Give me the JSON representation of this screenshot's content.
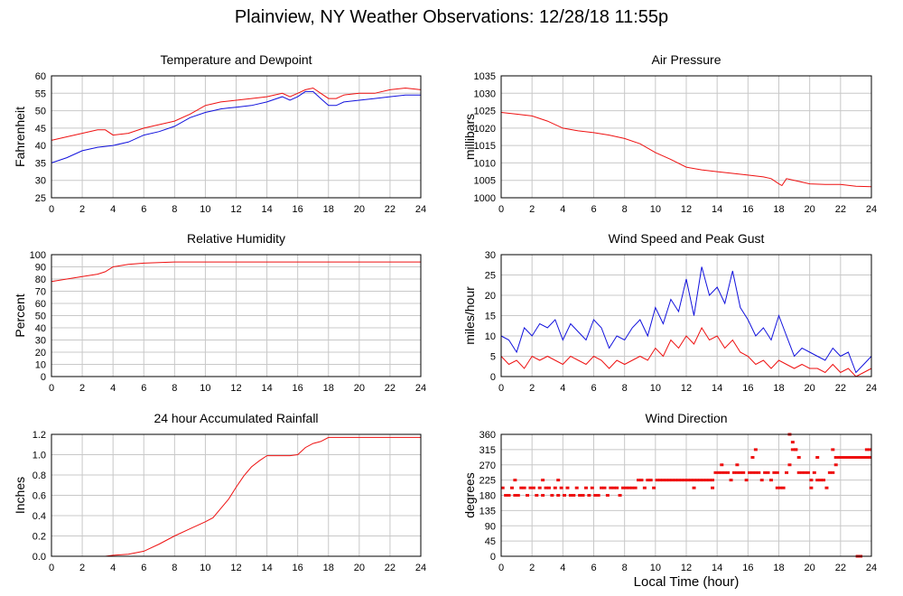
{
  "page": {
    "title": "Plainview, NY Weather Observations: 12/28/18 11:55p",
    "xlabel": "Local Time (hour)"
  },
  "colors": {
    "red": "#ee1111",
    "blue": "#1111dd",
    "grid": "#c8c8c8"
  },
  "chart_data": [
    {
      "type": "line",
      "title": "Temperature and Dewpoint",
      "ylabel": "Fahrenheit",
      "xlim": [
        0,
        24
      ],
      "ylim": [
        25,
        60
      ],
      "xticks": [
        0,
        2,
        4,
        6,
        8,
        10,
        12,
        14,
        16,
        18,
        20,
        22,
        24
      ],
      "yticks": [
        25,
        30,
        35,
        40,
        45,
        50,
        55,
        60
      ],
      "grid": true,
      "series": [
        {
          "color": "red",
          "style": "line",
          "x": [
            0,
            1,
            2,
            3,
            3.5,
            4,
            5,
            6,
            7,
            8,
            9,
            10,
            10.5,
            11,
            12,
            13,
            14,
            15,
            15.5,
            16,
            16.5,
            17,
            17.5,
            18,
            18.5,
            19,
            20,
            21,
            22,
            23,
            24
          ],
          "y": [
            41.5,
            42.5,
            43.5,
            44.5,
            44.5,
            43,
            43.5,
            45,
            46,
            47,
            49,
            51.5,
            52,
            52.5,
            53,
            53.5,
            54,
            55,
            54,
            55,
            56,
            56.5,
            55,
            53.5,
            53.5,
            54.5,
            55,
            55,
            56,
            56.5,
            56
          ]
        },
        {
          "color": "blue",
          "style": "line",
          "x": [
            0,
            1,
            2,
            3,
            4,
            5,
            6,
            7,
            8,
            9,
            10,
            10.5,
            11,
            12,
            13,
            14,
            15,
            15.5,
            16,
            16.5,
            17,
            17.5,
            18,
            18.5,
            19,
            20,
            21,
            22,
            23,
            24
          ],
          "y": [
            35,
            36.5,
            38.5,
            39.5,
            40,
            41,
            43,
            44,
            45.5,
            48,
            49.5,
            50,
            50.5,
            51,
            51.5,
            52.5,
            54,
            53,
            54,
            55.5,
            55.5,
            53.5,
            51.5,
            51.5,
            52.5,
            53,
            53.5,
            54,
            54.5,
            54.5
          ]
        }
      ]
    },
    {
      "type": "line",
      "title": "Air Pressure",
      "ylabel": "millibars",
      "xlim": [
        0,
        24
      ],
      "ylim": [
        1000,
        1035
      ],
      "xticks": [
        0,
        2,
        4,
        6,
        8,
        10,
        12,
        14,
        16,
        18,
        20,
        22,
        24
      ],
      "yticks": [
        1000,
        1005,
        1010,
        1015,
        1020,
        1025,
        1030,
        1035
      ],
      "grid": true,
      "series": [
        {
          "color": "red",
          "style": "line",
          "x": [
            0,
            1,
            2,
            3,
            4,
            5,
            6,
            7,
            8,
            9,
            10,
            11,
            12,
            13,
            14,
            15,
            16,
            17,
            17.5,
            18,
            18.2,
            18.5,
            19,
            20,
            21,
            22,
            23,
            24
          ],
          "y": [
            1024.5,
            1024,
            1023.5,
            1022,
            1020,
            1019.2,
            1018.7,
            1018,
            1017,
            1015.5,
            1013,
            1011,
            1008.8,
            1008,
            1007.5,
            1007,
            1006.5,
            1006,
            1005.5,
            1004,
            1003.5,
            1005.5,
            1005,
            1004,
            1003.8,
            1003.8,
            1003.3,
            1003.2
          ]
        }
      ]
    },
    {
      "type": "line",
      "title": "Relative Humidity",
      "ylabel": "Percent",
      "xlim": [
        0,
        24
      ],
      "ylim": [
        0,
        100
      ],
      "xticks": [
        0,
        2,
        4,
        6,
        8,
        10,
        12,
        14,
        16,
        18,
        20,
        22,
        24
      ],
      "yticks": [
        0,
        10,
        20,
        30,
        40,
        50,
        60,
        70,
        80,
        90,
        100
      ],
      "grid": true,
      "series": [
        {
          "color": "red",
          "style": "line",
          "x": [
            0,
            1,
            2,
            3,
            3.5,
            4,
            4.5,
            5,
            6,
            7,
            8,
            10,
            12,
            14,
            16,
            18,
            20,
            22,
            24
          ],
          "y": [
            78,
            80,
            82,
            84,
            86,
            90,
            91,
            92,
            93,
            93.5,
            94,
            94,
            94,
            94,
            94,
            94,
            94,
            94,
            94
          ]
        }
      ]
    },
    {
      "type": "line",
      "title": "Wind Speed and Peak Gust",
      "ylabel": "miles/hour",
      "xlim": [
        0,
        24
      ],
      "ylim": [
        0,
        30
      ],
      "xticks": [
        0,
        2,
        4,
        6,
        8,
        10,
        12,
        14,
        16,
        18,
        20,
        22,
        24
      ],
      "yticks": [
        0,
        5,
        10,
        15,
        20,
        25,
        30
      ],
      "grid": true,
      "series": [
        {
          "color": "blue",
          "style": "line",
          "x": [
            0,
            0.5,
            1,
            1.5,
            2,
            2.5,
            3,
            3.5,
            4,
            4.5,
            5,
            5.5,
            6,
            6.5,
            7,
            7.5,
            8,
            8.5,
            9,
            9.5,
            10,
            10.5,
            11,
            11.5,
            12,
            12.5,
            13,
            13.5,
            14,
            14.5,
            15,
            15.5,
            16,
            16.5,
            17,
            17.5,
            18,
            18.5,
            19,
            19.5,
            20,
            20.5,
            21,
            21.5,
            22,
            22.5,
            23,
            23.5,
            24
          ],
          "y": [
            10,
            9,
            6,
            12,
            10,
            13,
            12,
            14,
            9,
            13,
            11,
            9,
            14,
            12,
            7,
            10,
            9,
            12,
            14,
            10,
            17,
            13,
            19,
            16,
            24,
            15,
            27,
            20,
            22,
            18,
            26,
            17,
            14,
            10,
            12,
            9,
            15,
            10,
            5,
            7,
            6,
            5,
            4,
            7,
            5,
            6,
            1,
            3,
            5
          ]
        },
        {
          "color": "red",
          "style": "line",
          "x": [
            0,
            0.5,
            1,
            1.5,
            2,
            2.5,
            3,
            3.5,
            4,
            4.5,
            5,
            5.5,
            6,
            6.5,
            7,
            7.5,
            8,
            8.5,
            9,
            9.5,
            10,
            10.5,
            11,
            11.5,
            12,
            12.5,
            13,
            13.5,
            14,
            14.5,
            15,
            15.5,
            16,
            16.5,
            17,
            17.5,
            18,
            18.5,
            19,
            19.5,
            20,
            20.5,
            21,
            21.5,
            22,
            22.5,
            23,
            23.5,
            24
          ],
          "y": [
            5,
            3,
            4,
            2,
            5,
            4,
            5,
            4,
            3,
            5,
            4,
            3,
            5,
            4,
            2,
            4,
            3,
            4,
            5,
            4,
            7,
            5,
            9,
            7,
            10,
            8,
            12,
            9,
            10,
            7,
            9,
            6,
            5,
            3,
            4,
            2,
            4,
            3,
            2,
            3,
            2,
            2,
            1,
            3,
            1,
            2,
            0,
            1,
            2
          ]
        }
      ]
    },
    {
      "type": "line",
      "title": "24 hour Accumulated Rainfall",
      "ylabel": "Inches",
      "xlim": [
        0,
        24
      ],
      "ylim": [
        0,
        1.2
      ],
      "xticks": [
        0,
        2,
        4,
        6,
        8,
        10,
        12,
        14,
        16,
        18,
        20,
        22,
        24
      ],
      "yticks": [
        0.0,
        0.2,
        0.4,
        0.6,
        0.8,
        1.0,
        1.2
      ],
      "ytick_labels": [
        "0.0",
        "0.2",
        "0.4",
        "0.6",
        "0.8",
        "1.0",
        "1.2"
      ],
      "grid": true,
      "series": [
        {
          "color": "red",
          "style": "line",
          "x": [
            0,
            3.5,
            4,
            5,
            6,
            7,
            8,
            9,
            10,
            10.5,
            11,
            11.5,
            12,
            12.5,
            13,
            13.5,
            14,
            14.5,
            15,
            15.5,
            16,
            16.5,
            17,
            17.5,
            18,
            19,
            20,
            22,
            24
          ],
          "y": [
            0,
            0,
            0.01,
            0.02,
            0.05,
            0.12,
            0.2,
            0.27,
            0.34,
            0.38,
            0.47,
            0.56,
            0.68,
            0.79,
            0.88,
            0.94,
            0.99,
            0.99,
            0.99,
            0.99,
            1.0,
            1.07,
            1.11,
            1.13,
            1.17,
            1.17,
            1.17,
            1.17,
            1.17
          ]
        }
      ]
    },
    {
      "type": "scatter",
      "title": "Wind Direction",
      "ylabel": "degrees",
      "xlim": [
        0,
        24
      ],
      "ylim": [
        0,
        360
      ],
      "xticks": [
        0,
        2,
        4,
        6,
        8,
        10,
        12,
        14,
        16,
        18,
        20,
        22,
        24
      ],
      "yticks": [
        0,
        45,
        90,
        135,
        180,
        225,
        270,
        315,
        360
      ],
      "grid": true,
      "series": [
        {
          "color": "red",
          "style": "points",
          "x": [
            0.1,
            0.3,
            0.5,
            0.7,
            0.9,
            1.1,
            1.3,
            1.5,
            1.7,
            1.9,
            2.1,
            2.3,
            2.5,
            2.7,
            2.9,
            3.1,
            3.3,
            3.5,
            3.7,
            3.9,
            4.1,
            4.3,
            4.5,
            4.7,
            4.9,
            5.1,
            5.3,
            5.5,
            5.7,
            5.9,
            6.1,
            6.3,
            6.5,
            6.7,
            6.9,
            7.1,
            7.3,
            7.5,
            7.7,
            7.9,
            8.1,
            8.3,
            8.5,
            8.7,
            8.9,
            9.1,
            9.3,
            9.5,
            9.7,
            9.9,
            10.1,
            10.3,
            10.5,
            10.7,
            10.9,
            11.1,
            11.3,
            11.5,
            11.7,
            11.9,
            12.1,
            12.3,
            12.5,
            12.7,
            12.9,
            13.1,
            13.3,
            13.5,
            13.7,
            13.9,
            14.1,
            14.3,
            14.5,
            14.7,
            14.9,
            15.1,
            15.3,
            15.5,
            15.7,
            15.9,
            16.1,
            16.3,
            16.5,
            16.7,
            16.9,
            17.1,
            17.3,
            17.5,
            17.7,
            17.9,
            18.1,
            18.3,
            18.5,
            18.7,
            18.9,
            19.1,
            19.3,
            19.5,
            19.7,
            19.9,
            20.1,
            20.3,
            20.5,
            20.7,
            20.9,
            21.1,
            21.3,
            21.5,
            21.7,
            21.9,
            22.1,
            22.3,
            22.5,
            22.7,
            22.9,
            23.1,
            23.3,
            23.5,
            23.7,
            23.9,
            0.9,
            2.7,
            3.7,
            12.5,
            13.7,
            14.3,
            15.3,
            16.3,
            16.5,
            17.9,
            18.7,
            18.9,
            19.1,
            19.3,
            20.1,
            20.5,
            21.5,
            21.7,
            23.1,
            23.3,
            23.7,
            23.9
          ],
          "y": [
            202,
            180,
            180,
            202,
            180,
            180,
            202,
            202,
            180,
            202,
            202,
            180,
            202,
            180,
            202,
            202,
            180,
            202,
            180,
            202,
            180,
            202,
            180,
            180,
            202,
            180,
            180,
            202,
            180,
            202,
            180,
            180,
            202,
            202,
            180,
            202,
            202,
            202,
            180,
            202,
            202,
            202,
            202,
            202,
            225,
            225,
            202,
            225,
            225,
            202,
            225,
            225,
            225,
            225,
            225,
            225,
            225,
            225,
            225,
            225,
            225,
            225,
            225,
            225,
            225,
            225,
            225,
            225,
            225,
            247,
            247,
            247,
            247,
            247,
            225,
            247,
            247,
            247,
            247,
            225,
            247,
            247,
            247,
            247,
            225,
            247,
            247,
            225,
            247,
            202,
            202,
            202,
            247,
            270,
            315,
            315,
            247,
            247,
            247,
            247,
            225,
            247,
            225,
            225,
            225,
            202,
            247,
            247,
            270,
            292,
            292,
            292,
            292,
            292,
            292,
            292,
            292,
            292,
            292,
            292,
            225,
            225,
            225,
            202,
            202,
            270,
            270,
            292,
            315,
            247,
            360,
            337,
            315,
            292,
            202,
            292,
            315,
            292,
            0,
            0,
            315,
            315
          ]
        }
      ]
    }
  ]
}
